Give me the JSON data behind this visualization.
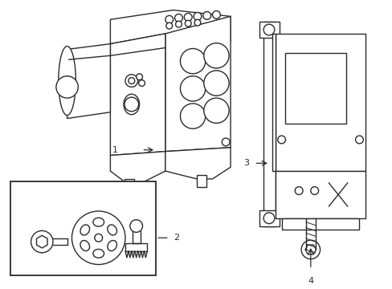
{
  "background_color": "#ffffff",
  "line_color": "#2a2a2a",
  "line_width": 1.0,
  "label_fontsize": 8,
  "fig_width": 4.89,
  "fig_height": 3.6,
  "dpi": 100
}
